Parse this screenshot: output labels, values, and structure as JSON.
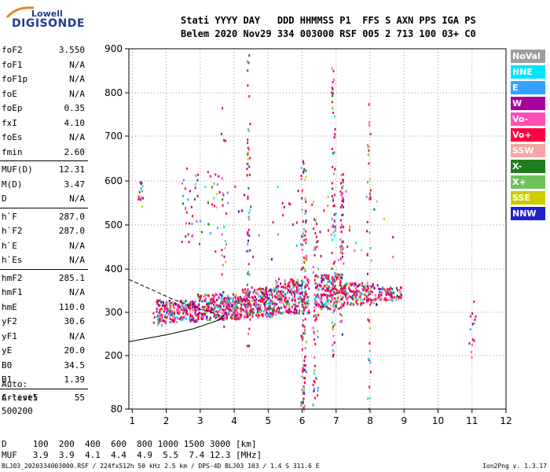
{
  "logo": {
    "line1": "Lowell",
    "line2": "DIGISONDE"
  },
  "header": {
    "labels": "Stati YYYY DAY   DDD HHMMSS P1  FFS S AXN PPS IGA PS",
    "values": "Belem 2020 Nov29 334 003000 RSF 005 2 713 100 03+ C0"
  },
  "params": {
    "group1": [
      {
        "name": "foF2",
        "value": "3.550"
      },
      {
        "name": "foF1",
        "value": "N/A"
      },
      {
        "name": "foF1p",
        "value": "N/A"
      },
      {
        "name": "foE",
        "value": "N/A"
      },
      {
        "name": "foEp",
        "value": "0.35"
      },
      {
        "name": "fxI",
        "value": "4.10"
      },
      {
        "name": "foEs",
        "value": "N/A"
      },
      {
        "name": "fmin",
        "value": "2.60"
      }
    ],
    "group2": [
      {
        "name": "MUF(D)",
        "value": "12.31"
      },
      {
        "name": "M(D)",
        "value": "3.47"
      },
      {
        "name": "D",
        "value": "N/A"
      }
    ],
    "group3": [
      {
        "name": "h`F",
        "value": "287.0"
      },
      {
        "name": "h`F2",
        "value": "287.0"
      },
      {
        "name": "h`E",
        "value": "N/A"
      },
      {
        "name": "h`Es",
        "value": "N/A"
      }
    ],
    "group4": [
      {
        "name": "hmF2",
        "value": "285.1"
      },
      {
        "name": "hmF1",
        "value": "N/A"
      },
      {
        "name": "hmE",
        "value": "110.0"
      },
      {
        "name": "yF2",
        "value": "30.6"
      },
      {
        "name": "yF1",
        "value": "N/A"
      },
      {
        "name": "yE",
        "value": "20.0"
      },
      {
        "name": "B0",
        "value": "34.5"
      },
      {
        "name": "B1",
        "value": "1.39"
      }
    ],
    "group5": [
      {
        "name": "C-level",
        "value": "55"
      }
    ]
  },
  "auto": {
    "line1": "Auto:",
    "line2": "Artist5",
    "line3": "500200"
  },
  "legend": [
    {
      "label": "NoVal",
      "color": "#9e9e9e"
    },
    {
      "label": "NNE",
      "color": "#00e5ff"
    },
    {
      "label": "E",
      "color": "#33a3ff"
    },
    {
      "label": "W",
      "color": "#a8009e"
    },
    {
      "label": "Vo-",
      "color": "#ff4fb4"
    },
    {
      "label": "Vo+",
      "color": "#ff0040"
    },
    {
      "label": "SSW",
      "color": "#f5a5a5"
    },
    {
      "label": "X-",
      "color": "#1e7d1e"
    },
    {
      "label": "X+",
      "color": "#6fc25c"
    },
    {
      "label": "SSE",
      "color": "#cccc00"
    },
    {
      "label": "NNW",
      "color": "#2020cc"
    }
  ],
  "dmuf": {
    "line1": "D     100  200  400  600  800 1000 1500 3000 [km]",
    "line2": "MUF   3.9  3.9  4.1  4.4  4.9  5.5  7.4 12.3 [MHz]"
  },
  "footer": {
    "left": "BLJ03_2020334003000.RSF / 224fx512h 50 kHz 2.5 km / DPS-4D BLJ03 103 / 1.4 S 311.6 E",
    "right": "Ion2Png v. 1.3.17"
  },
  "chart_data": {
    "type": "scatter",
    "x_ticks": [
      "1",
      "2",
      "3",
      "4",
      "5",
      "6",
      "7",
      "8",
      "9",
      "10",
      "11",
      "12"
    ],
    "y_ticks": [
      "80",
      "200",
      "300",
      "400",
      "500",
      "600",
      "700",
      "800",
      "900"
    ],
    "xlim": [
      0.9,
      12.0
    ],
    "y_tick_values": [
      80,
      200,
      300,
      400,
      500,
      600,
      700,
      800,
      900
    ],
    "traces": [
      {
        "name": "profile",
        "style": "solid",
        "points": [
          [
            0.9,
            232
          ],
          [
            2.0,
            248
          ],
          [
            2.8,
            262
          ],
          [
            3.4,
            278
          ],
          [
            3.7,
            287
          ]
        ]
      },
      {
        "name": "trace",
        "style": "dashed",
        "points": [
          [
            0.9,
            376
          ],
          [
            1.5,
            355
          ],
          [
            2.2,
            330
          ],
          [
            2.8,
            312
          ],
          [
            3.4,
            298
          ],
          [
            3.7,
            290
          ]
        ]
      }
    ],
    "echo_regions": [
      {
        "x": [
          1.7,
          2.9
        ],
        "y": [
          280,
          330
        ],
        "count": 220
      },
      {
        "x": [
          2.9,
          4.2
        ],
        "y": [
          285,
          345
        ],
        "count": 320
      },
      {
        "x": [
          4.2,
          5.2
        ],
        "y": [
          290,
          360
        ],
        "count": 260
      },
      {
        "x": [
          5.2,
          6.2
        ],
        "y": [
          300,
          380
        ],
        "count": 260
      },
      {
        "x": [
          6.4,
          7.2
        ],
        "y": [
          310,
          390
        ],
        "count": 200
      },
      {
        "x": [
          7.2,
          8.2
        ],
        "y": [
          320,
          370
        ],
        "count": 150
      },
      {
        "x": [
          8.2,
          8.9
        ],
        "y": [
          330,
          360
        ],
        "count": 70
      },
      {
        "x": [
          5.95,
          6.1
        ],
        "y": [
          80,
          650
        ],
        "count": 110
      },
      {
        "x": [
          6.3,
          6.45
        ],
        "y": [
          80,
          520
        ],
        "count": 70
      },
      {
        "x": [
          6.85,
          6.95
        ],
        "y": [
          180,
          870
        ],
        "count": 70
      },
      {
        "x": [
          7.1,
          7.2
        ],
        "y": [
          230,
          620
        ],
        "count": 60
      },
      {
        "x": [
          4.35,
          4.45
        ],
        "y": [
          220,
          900
        ],
        "count": 55
      },
      {
        "x": [
          7.9,
          8.0
        ],
        "y": [
          80,
          800
        ],
        "count": 40
      },
      {
        "x": [
          2.4,
          3.8
        ],
        "y": [
          440,
          630
        ],
        "count": 60
      },
      {
        "x": [
          1.6,
          2.2
        ],
        "y": [
          270,
          310
        ],
        "count": 30
      },
      {
        "x": [
          1.15,
          1.3
        ],
        "y": [
          540,
          600
        ],
        "count": 14
      },
      {
        "x": [
          10.9,
          11.1
        ],
        "y": [
          150,
          330
        ],
        "count": 14
      },
      {
        "x": [
          4.0,
          8.8
        ],
        "y": [
          420,
          590
        ],
        "count": 60
      },
      {
        "x": [
          3.6,
          3.75
        ],
        "y": [
          260,
          790
        ],
        "count": 22
      }
    ]
  }
}
